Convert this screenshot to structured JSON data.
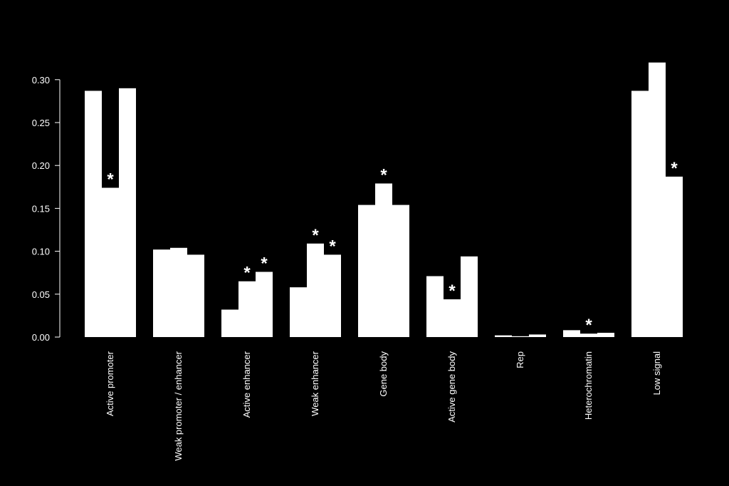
{
  "chart_data": {
    "type": "bar",
    "title": "",
    "xlabel": "",
    "ylabel": "",
    "ylim": [
      0,
      0.32
    ],
    "yticks": [
      "0.00",
      "0.05",
      "0.10",
      "0.15",
      "0.20",
      "0.25",
      "0.30"
    ],
    "bar_color": "#ffffff",
    "background_color": "#000000",
    "grid": false,
    "categories": [
      "Active promoter",
      "Weak promoter / enhancer",
      "Active enhancer",
      "Weak enhancer",
      "Gene body",
      "Active gene body",
      "Rep",
      "Heterochromatin",
      "Low signal"
    ],
    "values": [
      [
        0.287,
        0.174,
        0.29
      ],
      [
        0.102,
        0.104,
        0.096
      ],
      [
        0.032,
        0.065,
        0.076
      ],
      [
        0.058,
        0.109,
        0.096
      ],
      [
        0.154,
        0.179,
        0.154
      ],
      [
        0.071,
        0.044,
        0.094
      ],
      [
        0.002,
        0.001,
        0.003
      ],
      [
        0.008,
        0.004,
        0.005
      ],
      [
        0.287,
        0.32,
        0.187
      ]
    ],
    "significance": [
      [
        false,
        true,
        false
      ],
      [
        false,
        false,
        false
      ],
      [
        false,
        true,
        true
      ],
      [
        false,
        true,
        true
      ],
      [
        false,
        true,
        false
      ],
      [
        false,
        true,
        false
      ],
      [
        false,
        false,
        false
      ],
      [
        false,
        true,
        false
      ],
      [
        false,
        false,
        true
      ]
    ],
    "significance_marker": "*"
  }
}
